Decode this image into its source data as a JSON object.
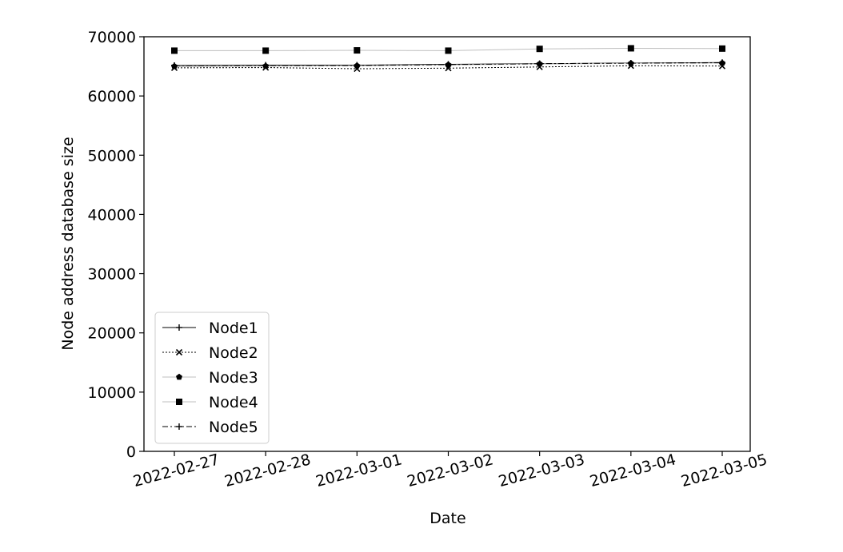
{
  "chart_data": {
    "type": "line",
    "title": "",
    "xlabel": "Date",
    "ylabel": "Node address database size",
    "x": [
      "2022-02-27",
      "2022-02-28",
      "2022-03-01",
      "2022-03-02",
      "2022-03-03",
      "2022-03-04",
      "2022-03-05"
    ],
    "ylim": [
      0,
      70000
    ],
    "yticks": [
      0,
      10000,
      20000,
      30000,
      40000,
      50000,
      60000,
      70000
    ],
    "grid": false,
    "legend_position": "lower-left",
    "series": [
      {
        "name": "Node1",
        "marker": "plus",
        "line_style": "solid",
        "line_color": "#000000",
        "values": [
          65150,
          65200,
          65200,
          65350,
          65450,
          65550,
          65650
        ]
      },
      {
        "name": "Node2",
        "marker": "x",
        "line_style": "dotted",
        "line_color": "#000000",
        "values": [
          64750,
          64800,
          64600,
          64700,
          64900,
          65100,
          65050
        ]
      },
      {
        "name": "Node3",
        "marker": "pentagon",
        "line_style": "solid",
        "line_color": "#bfbfbf",
        "values": [
          65000,
          65050,
          65100,
          65250,
          65400,
          65500,
          65550
        ]
      },
      {
        "name": "Node4",
        "marker": "square",
        "line_style": "solid",
        "line_color": "#bfbfbf",
        "values": [
          67650,
          67650,
          67700,
          67650,
          67950,
          68050,
          68000
        ]
      },
      {
        "name": "Node5",
        "marker": "plus",
        "line_style": "dashdot",
        "line_color": "#000000",
        "values": [
          65100,
          65150,
          65150,
          65300,
          65450,
          65550,
          65600
        ]
      }
    ]
  }
}
